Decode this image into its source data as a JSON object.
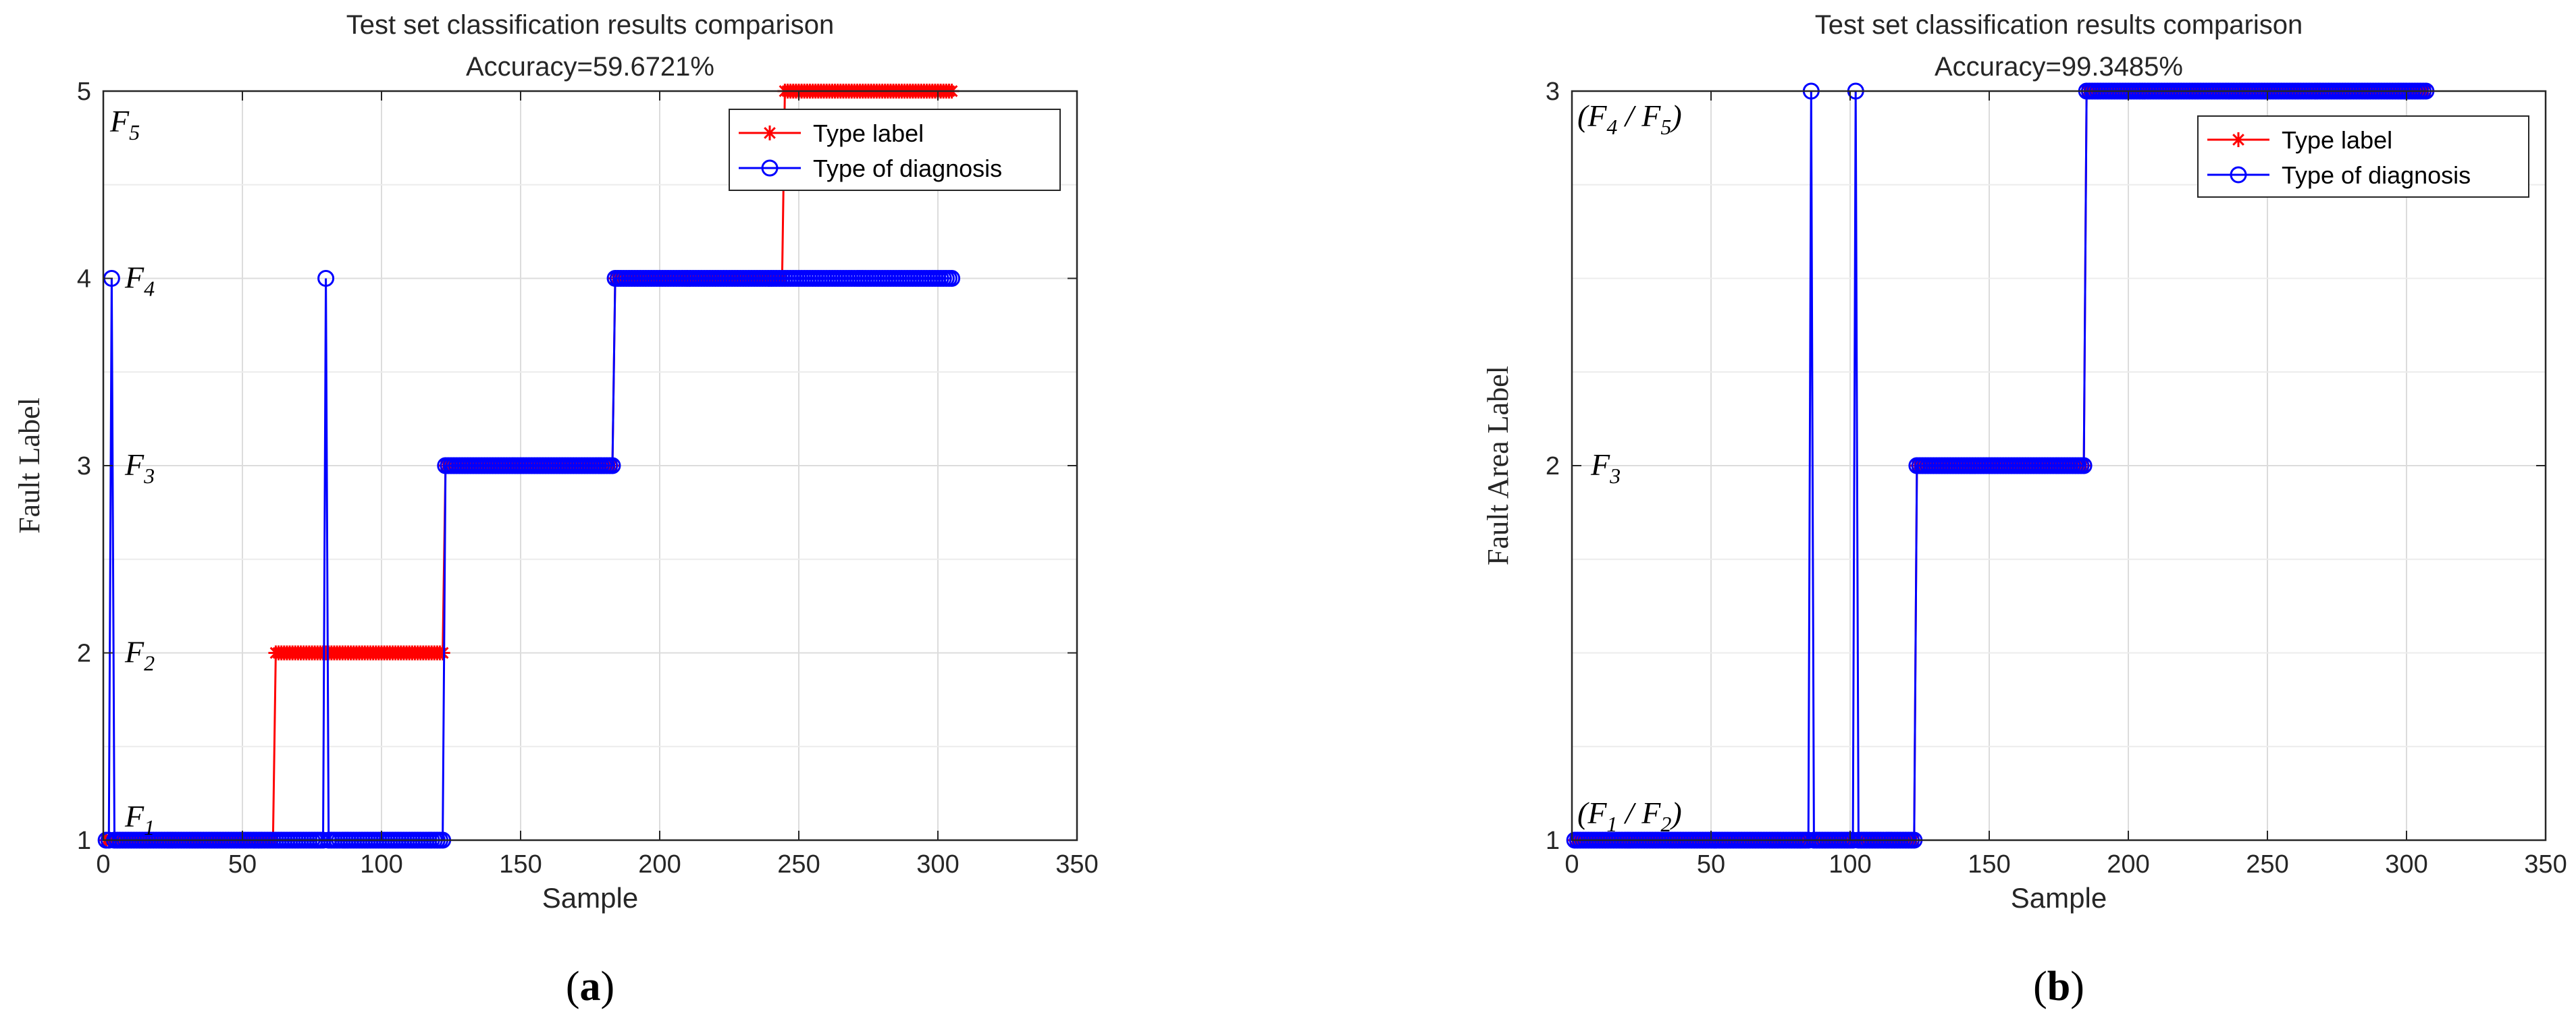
{
  "chart_data": [
    {
      "type": "line",
      "panel_label": "a",
      "title": "Test set classification results comparison",
      "subtitle": "Accuracy=59.6721%",
      "xlabel": "Sample",
      "ylabel": "Fault Label",
      "xlim": [
        0,
        350
      ],
      "ylim": [
        1,
        5
      ],
      "xticks": [
        0,
        50,
        100,
        150,
        200,
        250,
        300,
        350
      ],
      "yticks": [
        1,
        2,
        3,
        4,
        5
      ],
      "grid": true,
      "legend_position": "top-right",
      "annotations": [
        {
          "text": "F",
          "sub": "5",
          "y": 5
        },
        {
          "text": "F",
          "sub": "4",
          "y": 4
        },
        {
          "text": "F",
          "sub": "3",
          "y": 3
        },
        {
          "text": "F",
          "sub": "2",
          "y": 2
        },
        {
          "text": "F",
          "sub": "1",
          "y": 1
        }
      ],
      "n_samples": 305,
      "series": [
        {
          "name": "Type label",
          "color": "#ff0000",
          "marker": "asterisk",
          "segments": [
            {
              "from": 1,
              "to": 61,
              "value": 1
            },
            {
              "from": 62,
              "to": 122,
              "value": 2
            },
            {
              "from": 123,
              "to": 183,
              "value": 3
            },
            {
              "from": 184,
              "to": 244,
              "value": 4
            },
            {
              "from": 245,
              "to": 305,
              "value": 5
            }
          ]
        },
        {
          "name": "Type of diagnosis",
          "color": "#0000ff",
          "marker": "circle",
          "segments": [
            {
              "from": 1,
              "to": 122,
              "value": 1
            },
            {
              "from": 123,
              "to": 183,
              "value": 3
            },
            {
              "from": 184,
              "to": 305,
              "value": 4
            }
          ],
          "outliers": [
            {
              "x": 3,
              "value": 4
            },
            {
              "x": 80,
              "value": 4
            }
          ]
        }
      ]
    },
    {
      "type": "line",
      "panel_label": "b",
      "title": "Test set classification results comparison",
      "subtitle": "Accuracy=99.3485%",
      "xlabel": "Sample",
      "ylabel": "Fault Area Label",
      "xlim": [
        0,
        350
      ],
      "ylim": [
        1,
        3
      ],
      "xticks": [
        0,
        50,
        100,
        150,
        200,
        250,
        300,
        350
      ],
      "yticks": [
        1,
        2,
        3
      ],
      "grid": true,
      "legend_position": "top-right",
      "annotations": [
        {
          "text": "(F",
          "sub": "4",
          "text2": " / F",
          "sub2": "5",
          "tail": ")",
          "y": 3
        },
        {
          "text": "F",
          "sub": "3",
          "y": 2
        },
        {
          "text": "(F",
          "sub": "1",
          "text2": " / F",
          "sub2": "2",
          "tail": ")",
          "y": 1
        }
      ],
      "n_samples": 307,
      "series": [
        {
          "name": "Type label",
          "color": "#ff0000",
          "marker": "asterisk",
          "segments": [
            {
              "from": 1,
              "to": 123,
              "value": 1
            },
            {
              "from": 124,
              "to": 184,
              "value": 2
            },
            {
              "from": 185,
              "to": 307,
              "value": 3
            }
          ]
        },
        {
          "name": "Type of diagnosis",
          "color": "#0000ff",
          "marker": "circle",
          "segments": [
            {
              "from": 1,
              "to": 123,
              "value": 1
            },
            {
              "from": 124,
              "to": 184,
              "value": 2
            },
            {
              "from": 185,
              "to": 307,
              "value": 3
            }
          ],
          "outliers": [
            {
              "x": 86,
              "value": 3
            },
            {
              "x": 102,
              "value": 3
            }
          ]
        }
      ]
    }
  ],
  "panel_labels": [
    "(a)",
    "(b)"
  ]
}
